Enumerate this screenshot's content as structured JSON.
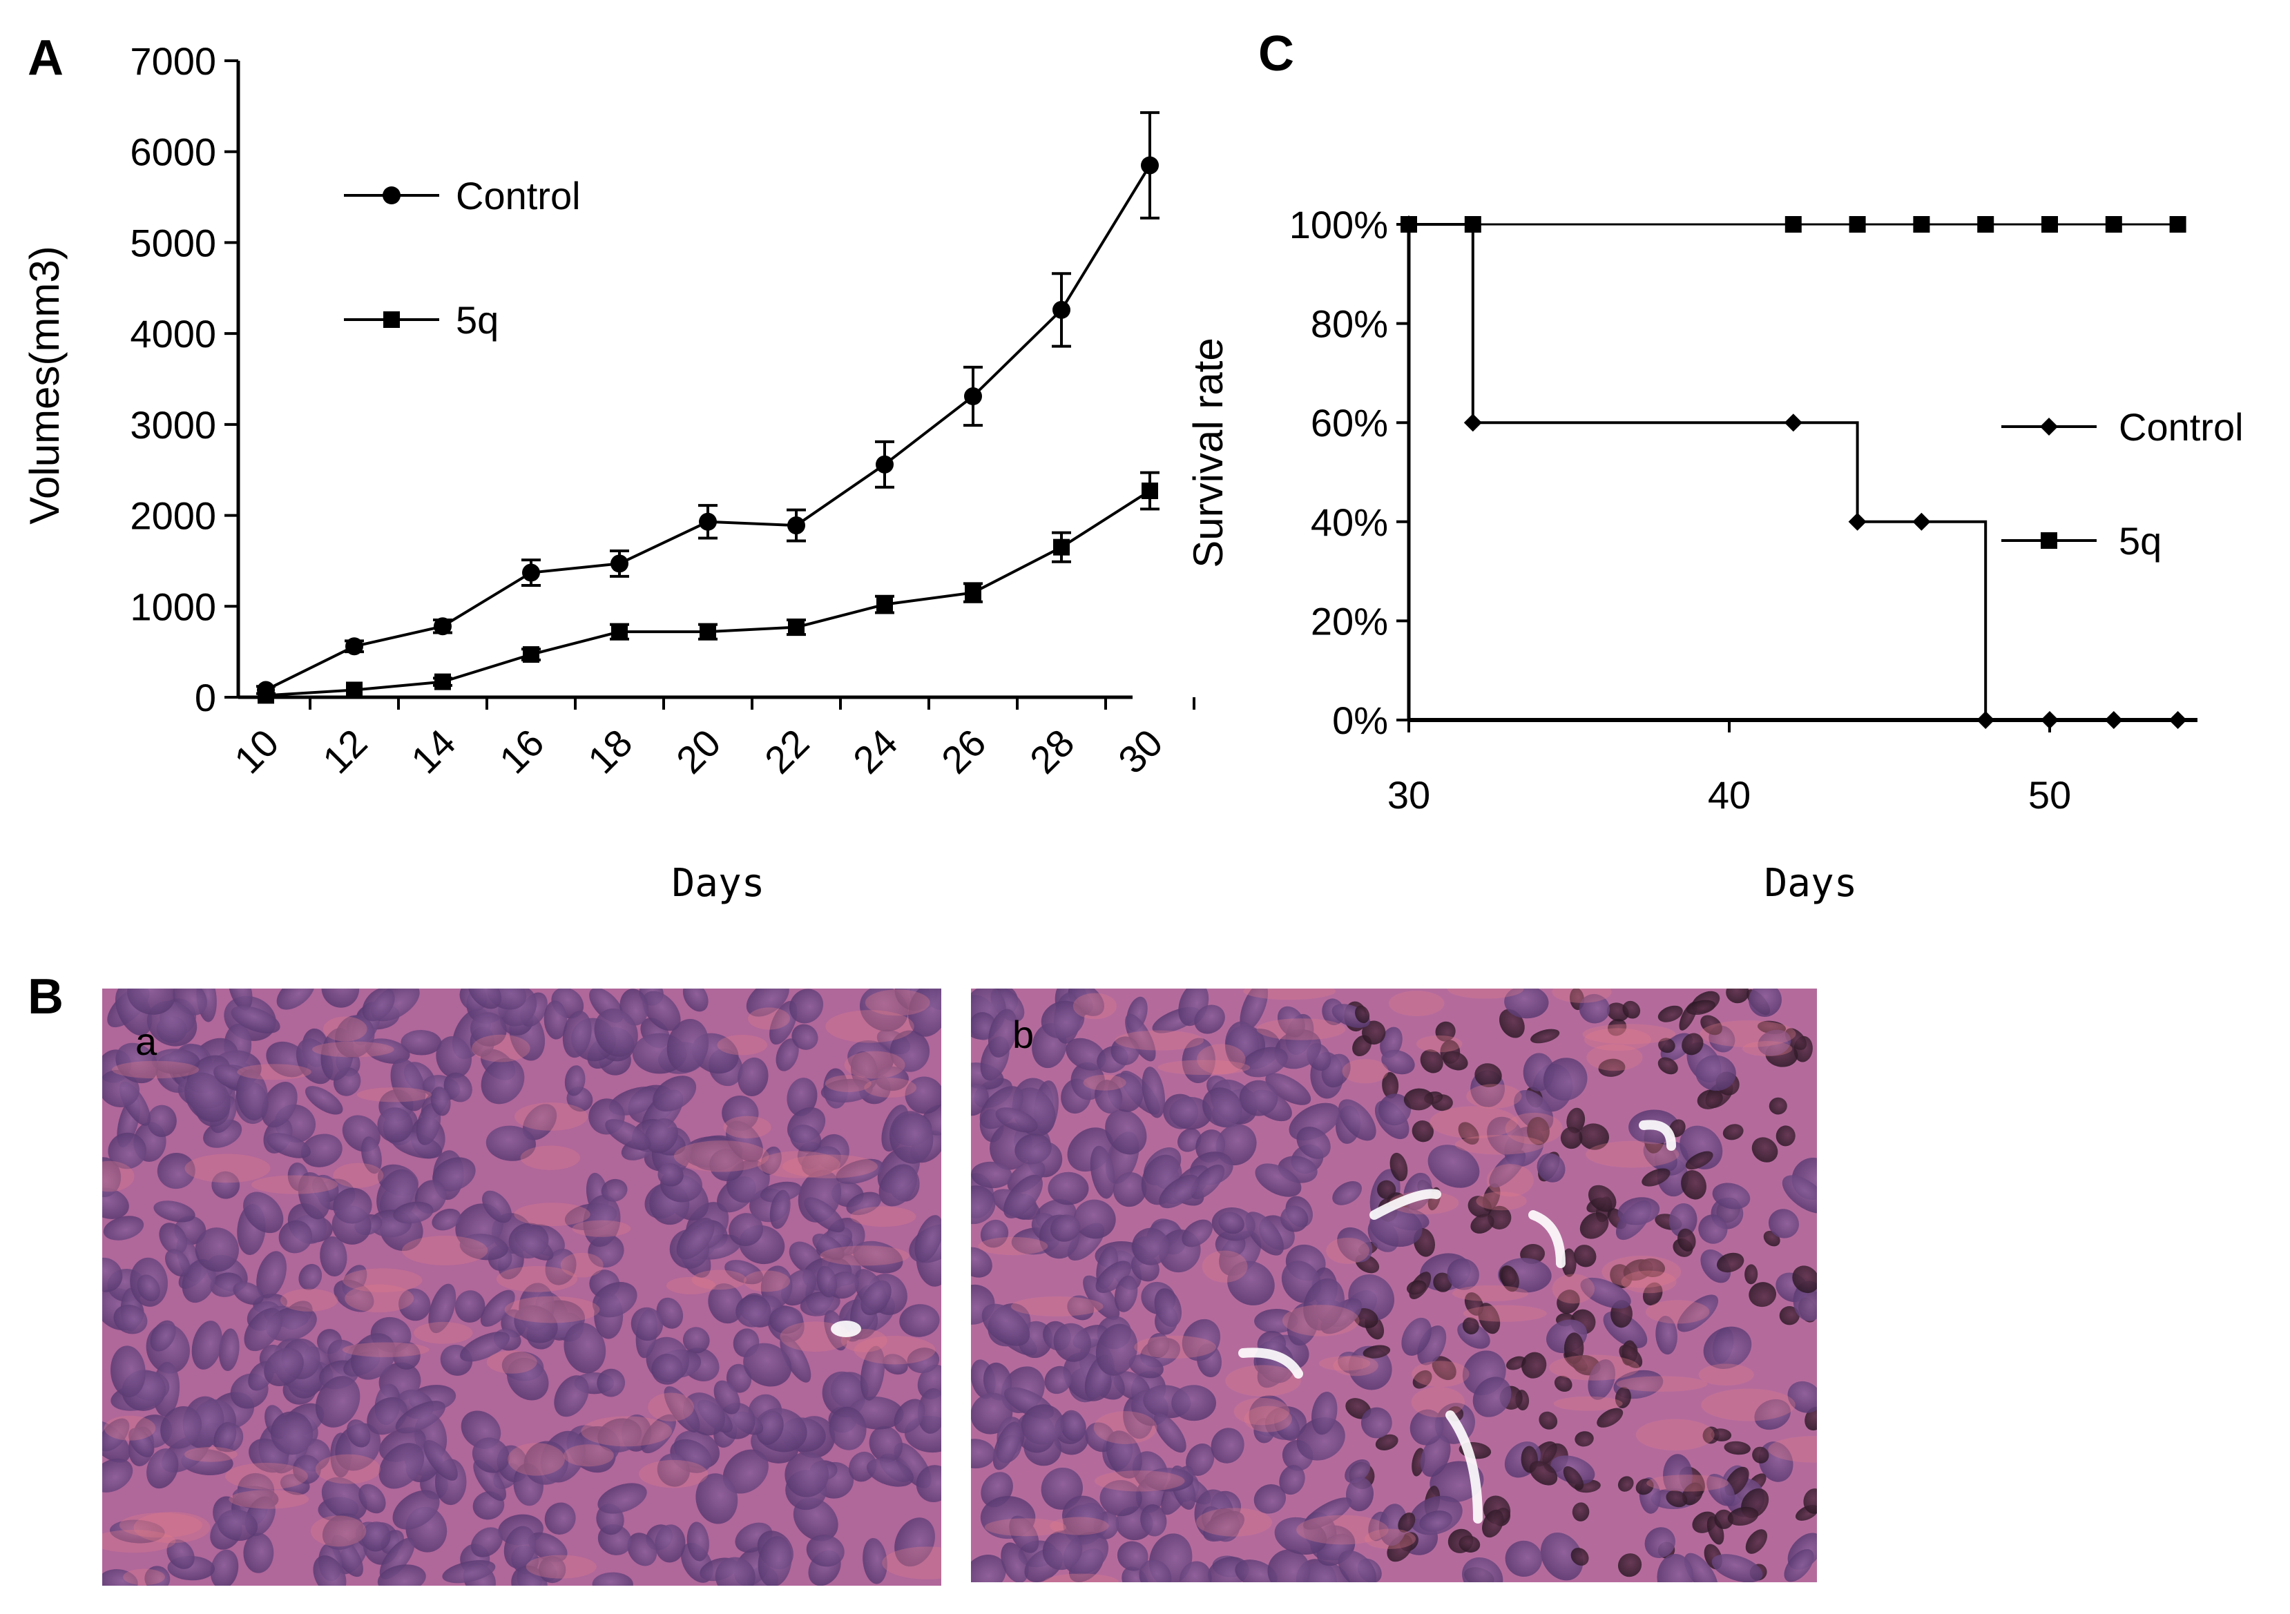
{
  "figure": {
    "panels": {
      "A": "A",
      "B": "B",
      "C": "C"
    },
    "photos": {
      "a_label": "a",
      "b_label": "b"
    }
  },
  "chart_data": [
    {
      "panel": "A",
      "type": "line",
      "xlabel": "Days",
      "ylabel": "Volumes(mm3)",
      "x": [
        10,
        12,
        14,
        16,
        18,
        20,
        22,
        24,
        26,
        28,
        30
      ],
      "xticks": [
        "10",
        "12",
        "14",
        "16",
        "18",
        "20",
        "22",
        "24",
        "26",
        "28",
        "30"
      ],
      "yticks": [
        "0",
        "1000",
        "2000",
        "3000",
        "4000",
        "5000",
        "6000",
        "7000"
      ],
      "ylim": [
        0,
        7000
      ],
      "legend_position": "upper-left",
      "series": [
        {
          "name": "Control",
          "marker": "circle",
          "values": [
            80,
            560,
            780,
            1370,
            1470,
            1930,
            1890,
            2560,
            3310,
            4260,
            5850
          ],
          "errors": [
            40,
            60,
            70,
            140,
            140,
            180,
            170,
            250,
            320,
            400,
            580
          ]
        },
        {
          "name": "5q",
          "marker": "square",
          "values": [
            20,
            80,
            170,
            470,
            720,
            720,
            770,
            1020,
            1150,
            1650,
            2270
          ],
          "errors": [
            15,
            30,
            40,
            60,
            80,
            80,
            80,
            90,
            100,
            160,
            200
          ]
        }
      ]
    },
    {
      "panel": "C",
      "type": "line",
      "step": true,
      "xlabel": "Days",
      "ylabel": "Survival rate",
      "xticks": [
        "30",
        "40",
        "50"
      ],
      "yticks": [
        "0%",
        "20%",
        "40%",
        "60%",
        "80%",
        "100%"
      ],
      "xlim": [
        30,
        54.5
      ],
      "ylim": [
        0,
        100
      ],
      "legend_position": "right",
      "series": [
        {
          "name": "Control",
          "marker": "diamond",
          "x": [
            30,
            32,
            42,
            44,
            46,
            48,
            50,
            52,
            54
          ],
          "values": [
            100,
            60,
            60,
            40,
            40,
            0,
            0,
            0,
            0
          ],
          "steps": [
            [
              30,
              100
            ],
            [
              32,
              100
            ],
            [
              32,
              60
            ],
            [
              44,
              60
            ],
            [
              44,
              40
            ],
            [
              48,
              40
            ],
            [
              48,
              0
            ],
            [
              54,
              0
            ]
          ]
        },
        {
          "name": "5q",
          "marker": "square",
          "x": [
            30,
            32,
            42,
            44,
            46,
            48,
            50,
            52,
            54
          ],
          "values": [
            100,
            100,
            100,
            100,
            100,
            100,
            100,
            100,
            100
          ]
        }
      ]
    }
  ]
}
